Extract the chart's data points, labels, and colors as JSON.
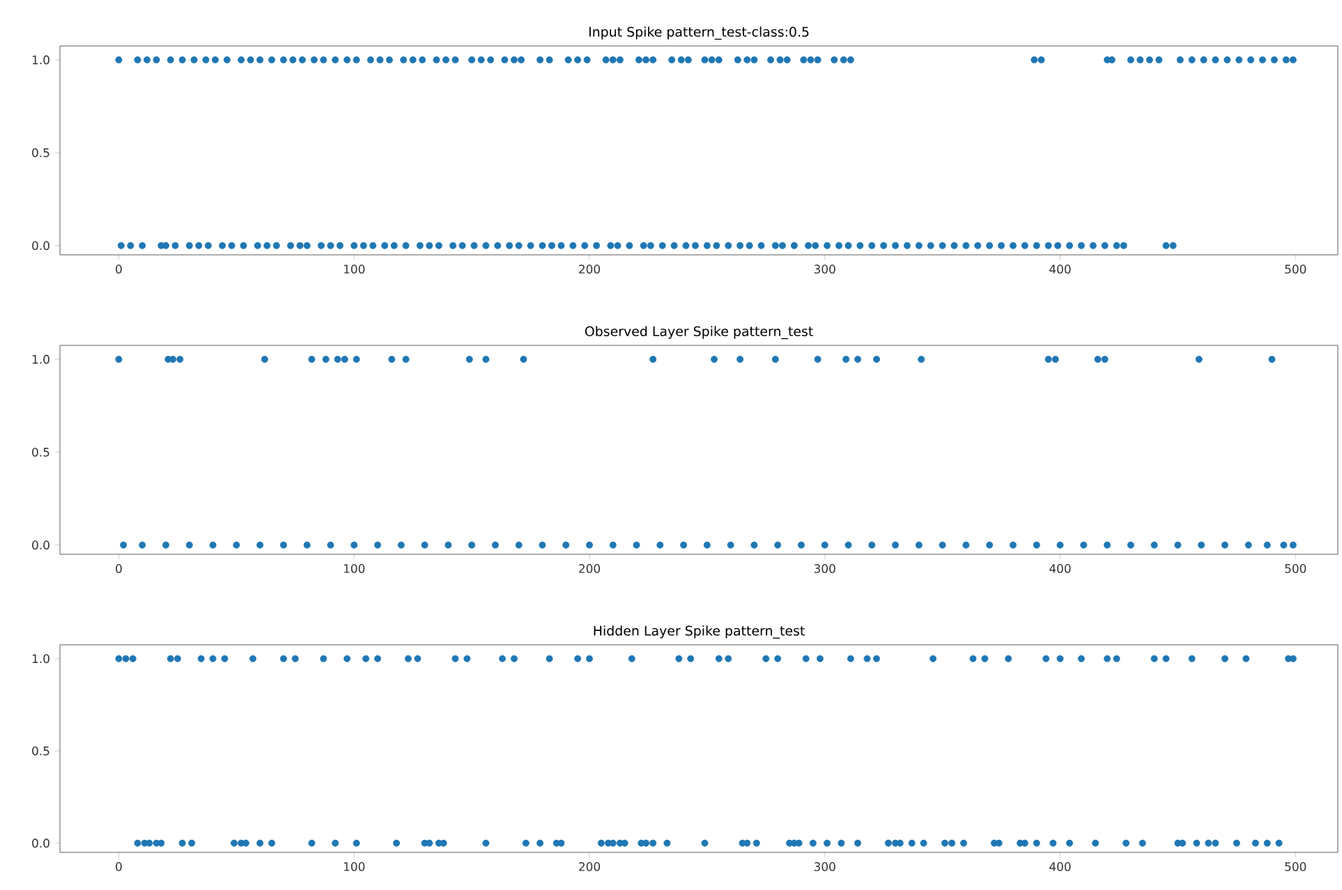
{
  "chart_data": [
    {
      "type": "scatter",
      "title": "Input Spike pattern_test-class:0.5",
      "color": "#1f77b4",
      "marker": "circle",
      "x": [
        0,
        8,
        12,
        16,
        22,
        27,
        32,
        37,
        41,
        46,
        52,
        56,
        60,
        65,
        70,
        74,
        78,
        83,
        87,
        92,
        97,
        101,
        107,
        111,
        115,
        121,
        125,
        129,
        135,
        139,
        143,
        150,
        154,
        158,
        164,
        168,
        171,
        179,
        183,
        191,
        195,
        199,
        207,
        210,
        213,
        221,
        224,
        227,
        235,
        239,
        242,
        249,
        252,
        255,
        263,
        267,
        270,
        277,
        281,
        284,
        291,
        294,
        297,
        304,
        308,
        311,
        389,
        392,
        420,
        422,
        430,
        434,
        438,
        442,
        451,
        456,
        461,
        466,
        471,
        476,
        481,
        486,
        491,
        496,
        499,
        1,
        5,
        10,
        18,
        20,
        24,
        30,
        34,
        38,
        44,
        48,
        53,
        59,
        63,
        67,
        73,
        77,
        80,
        86,
        90,
        94,
        100,
        104,
        108,
        113,
        117,
        122,
        128,
        132,
        136,
        142,
        146,
        151,
        156,
        161,
        166,
        170,
        175,
        180,
        184,
        188,
        193,
        198,
        203,
        209,
        212,
        217,
        223,
        226,
        231,
        236,
        241,
        245,
        250,
        254,
        259,
        264,
        268,
        273,
        279,
        282,
        287,
        293,
        296,
        301,
        306,
        310,
        315,
        320,
        325,
        330,
        335,
        340,
        345,
        350,
        355,
        360,
        365,
        370,
        375,
        380,
        385,
        390,
        395,
        399,
        404,
        409,
        414,
        419,
        424,
        427,
        445,
        448
      ],
      "values": [
        1,
        1,
        1,
        1,
        1,
        1,
        1,
        1,
        1,
        1,
        1,
        1,
        1,
        1,
        1,
        1,
        1,
        1,
        1,
        1,
        1,
        1,
        1,
        1,
        1,
        1,
        1,
        1,
        1,
        1,
        1,
        1,
        1,
        1,
        1,
        1,
        1,
        1,
        1,
        1,
        1,
        1,
        1,
        1,
        1,
        1,
        1,
        1,
        1,
        1,
        1,
        1,
        1,
        1,
        1,
        1,
        1,
        1,
        1,
        1,
        1,
        1,
        1,
        1,
        1,
        1,
        1,
        1,
        1,
        1,
        1,
        1,
        1,
        1,
        1,
        1,
        1,
        1,
        1,
        1,
        1,
        1,
        1,
        1,
        1,
        0,
        0,
        0,
        0,
        0,
        0,
        0,
        0,
        0,
        0,
        0,
        0,
        0,
        0,
        0,
        0,
        0,
        0,
        0,
        0,
        0,
        0,
        0,
        0,
        0,
        0,
        0,
        0,
        0,
        0,
        0,
        0,
        0,
        0,
        0,
        0,
        0,
        0,
        0,
        0,
        0,
        0,
        0,
        0,
        0,
        0,
        0,
        0,
        0,
        0,
        0,
        0,
        0,
        0,
        0,
        0,
        0,
        0,
        0,
        0,
        0,
        0,
        0,
        0,
        0,
        0,
        0,
        0,
        0,
        0,
        0,
        0,
        0,
        0,
        0,
        0,
        0,
        0,
        0,
        0,
        0,
        0,
        0,
        0,
        0,
        0,
        0,
        0,
        0,
        0,
        0,
        0,
        0
      ],
      "xlim": [
        -25,
        518
      ],
      "ylim": [
        -0.05,
        1.075
      ],
      "xticks": [
        0,
        100,
        200,
        300,
        400,
        500
      ],
      "yticks": [
        {
          "value": 0,
          "label": "0.0"
        },
        {
          "value": 0.5,
          "label": "0.5"
        },
        {
          "value": 1,
          "label": "1.0"
        }
      ]
    },
    {
      "type": "scatter",
      "title": "Observed Layer Spike pattern_test",
      "color": "#1f77b4",
      "marker": "circle",
      "x": [
        0,
        21,
        23,
        26,
        62,
        82,
        88,
        93,
        96,
        101,
        116,
        122,
        149,
        156,
        172,
        227,
        253,
        264,
        279,
        297,
        309,
        314,
        322,
        341,
        395,
        398,
        416,
        419,
        459,
        490,
        2,
        10,
        20,
        30,
        40,
        50,
        60,
        70,
        80,
        90,
        100,
        110,
        120,
        130,
        140,
        150,
        160,
        170,
        180,
        190,
        200,
        210,
        220,
        230,
        240,
        250,
        260,
        270,
        280,
        290,
        300,
        310,
        320,
        330,
        340,
        350,
        360,
        370,
        380,
        390,
        400,
        410,
        420,
        430,
        440,
        450,
        460,
        470,
        480,
        488,
        495,
        499
      ],
      "values": [
        1,
        1,
        1,
        1,
        1,
        1,
        1,
        1,
        1,
        1,
        1,
        1,
        1,
        1,
        1,
        1,
        1,
        1,
        1,
        1,
        1,
        1,
        1,
        1,
        1,
        1,
        1,
        1,
        1,
        1,
        0,
        0,
        0,
        0,
        0,
        0,
        0,
        0,
        0,
        0,
        0,
        0,
        0,
        0,
        0,
        0,
        0,
        0,
        0,
        0,
        0,
        0,
        0,
        0,
        0,
        0,
        0,
        0,
        0,
        0,
        0,
        0,
        0,
        0,
        0,
        0,
        0,
        0,
        0,
        0,
        0,
        0,
        0,
        0,
        0,
        0,
        0,
        0,
        0,
        0,
        0,
        0
      ],
      "xlim": [
        -25,
        518
      ],
      "ylim": [
        -0.05,
        1.075
      ],
      "xticks": [
        0,
        100,
        200,
        300,
        400,
        500
      ],
      "yticks": [
        {
          "value": 0,
          "label": "0.0"
        },
        {
          "value": 0.5,
          "label": "0.5"
        },
        {
          "value": 1,
          "label": "1.0"
        }
      ]
    },
    {
      "type": "scatter",
      "title": "Hidden Layer Spike pattern_test",
      "color": "#1f77b4",
      "marker": "circle",
      "x": [
        0,
        3,
        6,
        22,
        25,
        35,
        40,
        45,
        57,
        70,
        75,
        87,
        97,
        105,
        110,
        123,
        127,
        143,
        148,
        163,
        168,
        183,
        195,
        200,
        218,
        238,
        243,
        255,
        259,
        275,
        280,
        292,
        298,
        311,
        318,
        322,
        346,
        363,
        368,
        378,
        394,
        400,
        409,
        420,
        424,
        440,
        445,
        456,
        470,
        479,
        497,
        499,
        8,
        11,
        13,
        16,
        18,
        27,
        31,
        49,
        52,
        54,
        60,
        65,
        82,
        92,
        101,
        118,
        130,
        132,
        136,
        138,
        156,
        173,
        179,
        186,
        188,
        205,
        208,
        210,
        213,
        215,
        222,
        224,
        227,
        233,
        249,
        265,
        267,
        271,
        285,
        287,
        289,
        295,
        301,
        307,
        314,
        327,
        330,
        332,
        337,
        342,
        351,
        354,
        359,
        372,
        374,
        383,
        385,
        390,
        397,
        404,
        415,
        428,
        435,
        450,
        452,
        458,
        463,
        466,
        475,
        483,
        488,
        493
      ],
      "values": [
        1,
        1,
        1,
        1,
        1,
        1,
        1,
        1,
        1,
        1,
        1,
        1,
        1,
        1,
        1,
        1,
        1,
        1,
        1,
        1,
        1,
        1,
        1,
        1,
        1,
        1,
        1,
        1,
        1,
        1,
        1,
        1,
        1,
        1,
        1,
        1,
        1,
        1,
        1,
        1,
        1,
        1,
        1,
        1,
        1,
        1,
        1,
        1,
        1,
        1,
        1,
        1,
        0,
        0,
        0,
        0,
        0,
        0,
        0,
        0,
        0,
        0,
        0,
        0,
        0,
        0,
        0,
        0,
        0,
        0,
        0,
        0,
        0,
        0,
        0,
        0,
        0,
        0,
        0,
        0,
        0,
        0,
        0,
        0,
        0,
        0,
        0,
        0,
        0,
        0,
        0,
        0,
        0,
        0,
        0,
        0,
        0,
        0,
        0,
        0,
        0,
        0,
        0,
        0,
        0,
        0,
        0,
        0,
        0,
        0,
        0,
        0,
        0,
        0,
        0,
        0,
        0,
        0,
        0,
        0,
        0,
        0,
        0,
        0
      ],
      "xlim": [
        -25,
        518
      ],
      "ylim": [
        -0.05,
        1.075
      ],
      "xticks": [
        0,
        100,
        200,
        300,
        400,
        500
      ],
      "yticks": [
        {
          "value": 0,
          "label": "0.0"
        },
        {
          "value": 0.5,
          "label": "0.5"
        },
        {
          "value": 1,
          "label": "1.0"
        }
      ]
    }
  ]
}
